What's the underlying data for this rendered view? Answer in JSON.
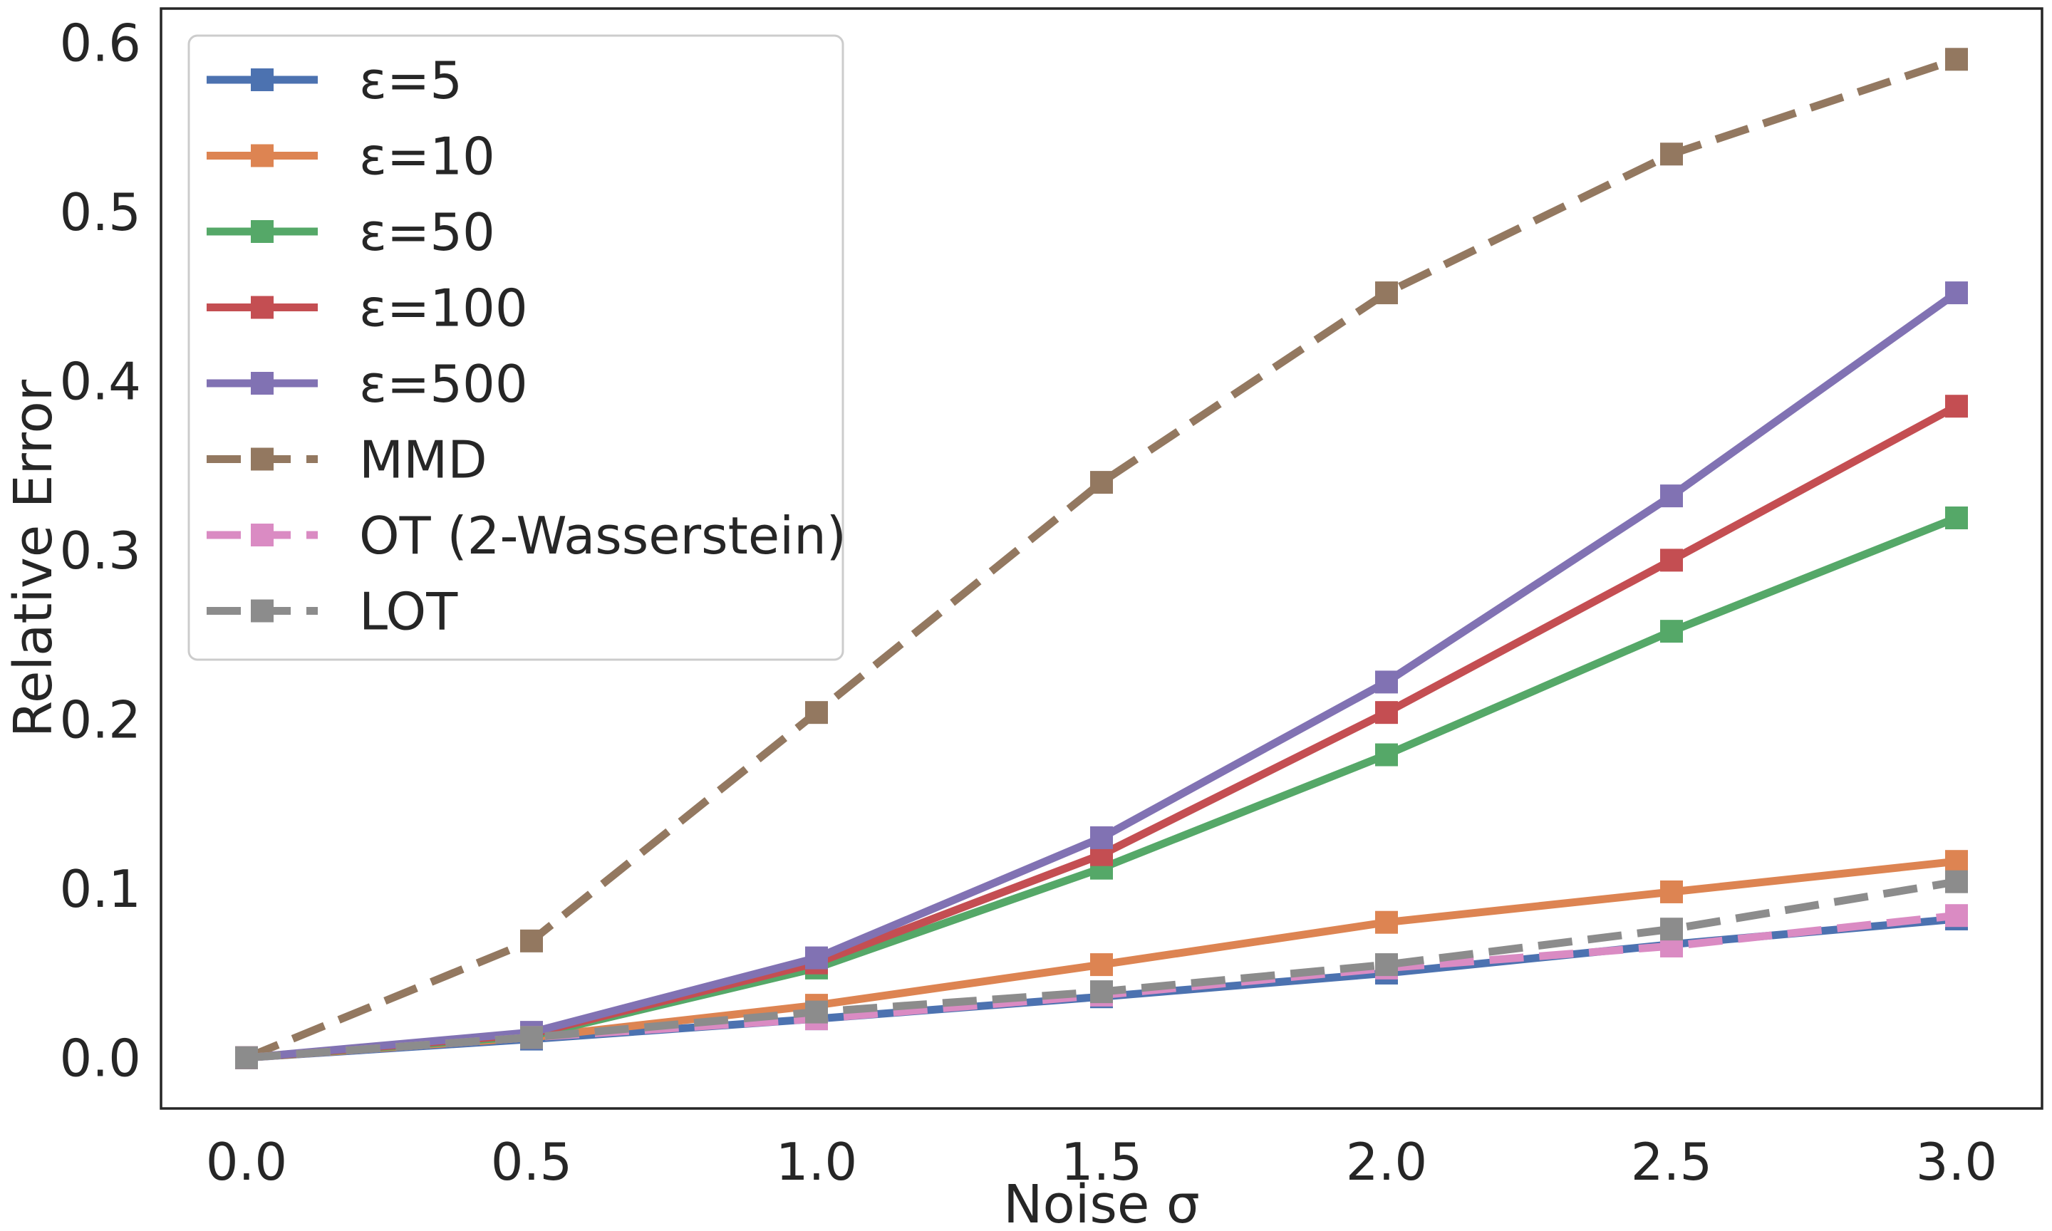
{
  "chart_data": {
    "type": "line",
    "title": "",
    "xlabel": "Noise σ",
    "ylabel": "Relative Error",
    "x": [
      0.0,
      0.5,
      1.0,
      1.5,
      2.0,
      2.5,
      3.0
    ],
    "xlim": [
      -0.15,
      3.15
    ],
    "ylim": [
      -0.03,
      0.62
    ],
    "xticks": [
      0.0,
      0.5,
      1.0,
      1.5,
      2.0,
      2.5,
      3.0
    ],
    "xtick_labels": [
      "0.0",
      "0.5",
      "1.0",
      "1.5",
      "2.0",
      "2.5",
      "3.0"
    ],
    "yticks": [
      0.0,
      0.1,
      0.2,
      0.3,
      0.4,
      0.5,
      0.6
    ],
    "ytick_labels": [
      "0.0",
      "0.1",
      "0.2",
      "0.3",
      "0.4",
      "0.5",
      "0.6"
    ],
    "grid": false,
    "legend_position": "top-left",
    "series": [
      {
        "name": "ε=5",
        "color": "#4c72b0",
        "style": "solid",
        "values": [
          0.0,
          0.011,
          0.023,
          0.036,
          0.05,
          0.067,
          0.082
        ]
      },
      {
        "name": "ε=10",
        "color": "#dd8452",
        "style": "solid",
        "values": [
          0.0,
          0.012,
          0.031,
          0.055,
          0.08,
          0.098,
          0.116
        ]
      },
      {
        "name": "ε=50",
        "color": "#55a868",
        "style": "solid",
        "values": [
          0.0,
          0.013,
          0.053,
          0.112,
          0.179,
          0.252,
          0.319
        ]
      },
      {
        "name": "ε=100",
        "color": "#c44e52",
        "style": "solid",
        "values": [
          0.0,
          0.014,
          0.056,
          0.12,
          0.204,
          0.294,
          0.385
        ]
      },
      {
        "name": "ε=500",
        "color": "#8172b3",
        "style": "solid",
        "values": [
          0.0,
          0.015,
          0.059,
          0.13,
          0.222,
          0.332,
          0.452
        ]
      },
      {
        "name": "MMD",
        "color": "#937860",
        "style": "dashed",
        "values": [
          0.0,
          0.069,
          0.204,
          0.34,
          0.452,
          0.534,
          0.59
        ]
      },
      {
        "name": "OT (2-Wasserstein)",
        "color": "#da8bc3",
        "style": "dashed",
        "values": [
          0.0,
          0.012,
          0.023,
          0.037,
          0.053,
          0.066,
          0.084
        ]
      },
      {
        "name": "LOT",
        "color": "#8c8c8c",
        "style": "dashed",
        "values": [
          0.0,
          0.012,
          0.027,
          0.039,
          0.055,
          0.076,
          0.104
        ]
      }
    ]
  }
}
